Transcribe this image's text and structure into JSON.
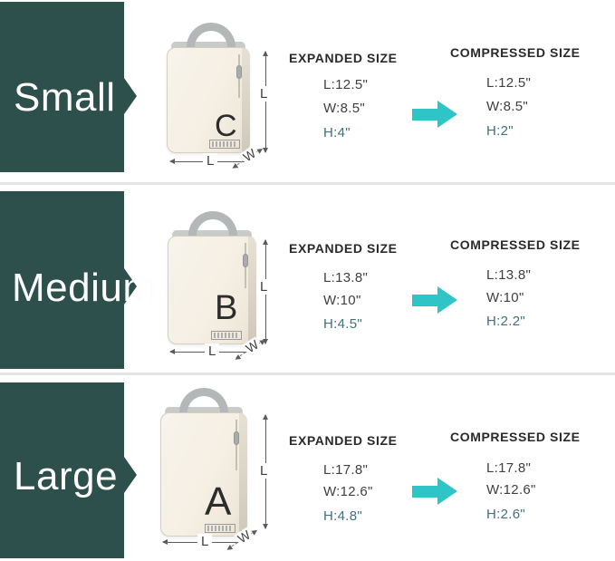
{
  "colors": {
    "label_block": "#2d504d",
    "cyan_arrow": "#2fc4c6",
    "h_value_text": "#426f7f"
  },
  "rows": [
    {
      "size_label": "Small",
      "bag_letter": "C",
      "dims": {
        "vertical": "L",
        "horizontal": "L",
        "depth": "W"
      },
      "expanded": {
        "title": "EXPANDED SIZE",
        "l": "L:12.5\"",
        "w": "W:8.5\"",
        "h": "H:4\""
      },
      "compressed": {
        "title": "COMPRESSED SIZE",
        "l": "L:12.5\"",
        "w": "W:8.5\"",
        "h": "H:2\""
      }
    },
    {
      "size_label": "Medium",
      "bag_letter": "B",
      "dims": {
        "vertical": "L",
        "horizontal": "L",
        "depth": "W"
      },
      "expanded": {
        "title": "EXPANDED SIZE",
        "l": "L:13.8\"",
        "w": "W:10\"",
        "h": "H:4.5\""
      },
      "compressed": {
        "title": "COMPRESSED SIZE",
        "l": "L:13.8\"",
        "w": "W:10\"",
        "h": "H:2.2\""
      }
    },
    {
      "size_label": "Large",
      "bag_letter": "A",
      "dims": {
        "vertical": "L",
        "horizontal": "L",
        "depth": "W"
      },
      "expanded": {
        "title": "EXPANDED SIZE",
        "l": "L:17.8\"",
        "w": "W:12.6\"",
        "h": "H:4.8\""
      },
      "compressed": {
        "title": "COMPRESSED SIZE",
        "l": "L:17.8\"",
        "w": "W:12.6\"",
        "h": "H:2.6\""
      }
    }
  ]
}
